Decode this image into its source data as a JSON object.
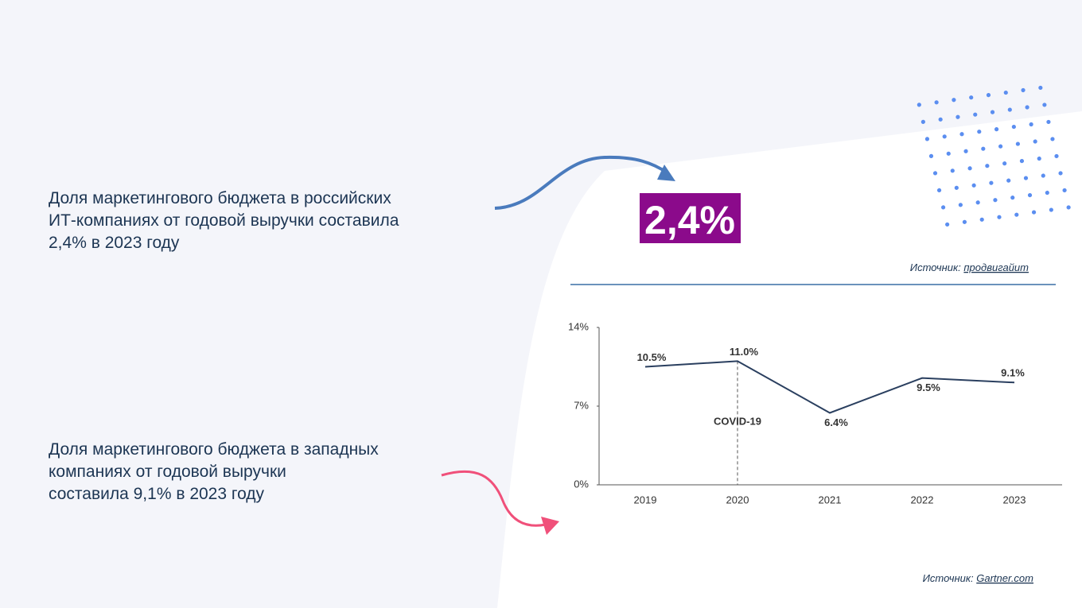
{
  "texts": {
    "russia_lines": [
      "Доля маркетингового бюджета в российских",
      "ИТ-компаниях от годовой выручки составила",
      "2,4% в 2023 году"
    ],
    "west_lines": [
      "Доля маркетингового бюджета в западных",
      "компаниях от годовой выручки",
      "составила 9,1% в 2023 году"
    ],
    "big_value": "2,4%",
    "source1_label": "Источник: ",
    "source1_link": "продвигайит",
    "source2_label": "Источник: ",
    "source2_link": "Gartner.com"
  },
  "chart_data": {
    "type": "line",
    "categories": [
      "2019",
      "2020",
      "2021",
      "2022",
      "2023"
    ],
    "values": [
      10.5,
      11.0,
      6.4,
      9.5,
      9.1
    ],
    "value_labels": [
      "10.5%",
      "11.0%",
      "6.4%",
      "9.5%",
      "9.1%"
    ],
    "color": "#2a3f5f",
    "ylim": [
      0,
      14
    ],
    "yticks": [
      {
        "value": 0,
        "label": "0%"
      },
      {
        "value": 7,
        "label": "7%"
      },
      {
        "value": 14,
        "label": "14%"
      }
    ],
    "annotation": {
      "text": "COVID-19",
      "x": "2020"
    }
  }
}
